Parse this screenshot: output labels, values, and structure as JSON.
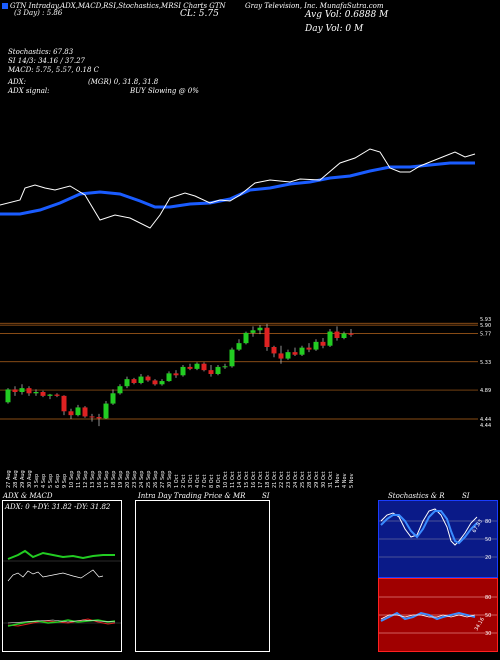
{
  "header": {
    "links": "GTN Intraday,ADX,MACD,RSI,Stochastics,MRSI Charts GTN",
    "title": "Gray Television, Inc. MunafaSutra.com",
    "date_label": "(3 Day) : 5.86",
    "close_label": "CL: 5.75",
    "avg_vol": "Avg Vol: 0.6888  M",
    "day_vol": "Day Vol: 0  M"
  },
  "indicators": {
    "stochastics": "Stochastics: 67.83",
    "si": "SI 14/3: 34.16  /  37.27",
    "macd": "MACD: 5.75, 5.57, 0.18  C",
    "adx": "ADX:",
    "adx_values": "(MGR) 0, 31.8, 31.8",
    "adx_signal": "ADX  signal:",
    "buy_signal": "BUY Slowing @ 0%"
  },
  "colors": {
    "price_line": "#ffffff",
    "ma_line": "#1a5cff",
    "up_candle": "#22cc22",
    "down_candle": "#dd2222",
    "level_line": "#b5651d"
  },
  "candle_chart": {
    "price_labels": [
      "5.93",
      "5.90",
      "5.77",
      "5.33",
      "4.89",
      "4.44",
      "4.44"
    ],
    "dates": [
      "27 Aug",
      "28 Aug",
      "29 Aug",
      "30 Aug",
      "3 Sep",
      "4 Sep",
      "5 Sep",
      "6 Sep",
      "9 Sep",
      "10 Sep",
      "11 Sep",
      "12 Sep",
      "13 Sep",
      "16 Sep",
      "17 Sep",
      "18 Sep",
      "19 Sep",
      "20 Sep",
      "23 Sep",
      "24 Sep",
      "25 Sep",
      "26 Sep",
      "27 Sep",
      "30 Sep",
      "1 Oct",
      "2 Oct",
      "3 Oct",
      "4 Oct",
      "7 Oct",
      "8 Oct",
      "9 Oct",
      "10 Oct",
      "11 Oct",
      "14 Oct",
      "15 Oct",
      "16 Oct",
      "17 Oct",
      "18 Oct",
      "21 Oct",
      "22 Oct",
      "23 Oct",
      "24 Oct",
      "25 Oct",
      "28 Oct",
      "29 Oct",
      "30 Oct",
      "31 Oct",
      "1 Nov",
      "4 Nov",
      "5 Nov"
    ]
  },
  "chart_data": {
    "type": "candlestick",
    "levels": [
      5.93,
      5.9,
      5.77,
      5.33,
      4.89,
      4.44
    ],
    "candles": [
      {
        "o": 4.7,
        "h": 4.92,
        "l": 4.68,
        "c": 4.9
      },
      {
        "o": 4.9,
        "h": 4.95,
        "l": 4.8,
        "c": 4.86
      },
      {
        "o": 4.86,
        "h": 4.98,
        "l": 4.82,
        "c": 4.92
      },
      {
        "o": 4.92,
        "h": 4.95,
        "l": 4.8,
        "c": 4.84
      },
      {
        "o": 4.84,
        "h": 4.9,
        "l": 4.8,
        "c": 4.86
      },
      {
        "o": 4.86,
        "h": 4.88,
        "l": 4.78,
        "c": 4.8
      },
      {
        "o": 4.8,
        "h": 4.83,
        "l": 4.75,
        "c": 4.82
      },
      {
        "o": 4.82,
        "h": 4.84,
        "l": 4.78,
        "c": 4.8
      },
      {
        "o": 4.8,
        "h": 4.81,
        "l": 4.5,
        "c": 4.56
      },
      {
        "o": 4.56,
        "h": 4.6,
        "l": 4.44,
        "c": 4.5
      },
      {
        "o": 4.5,
        "h": 4.66,
        "l": 4.48,
        "c": 4.62
      },
      {
        "o": 4.62,
        "h": 4.64,
        "l": 4.46,
        "c": 4.48
      },
      {
        "o": 4.48,
        "h": 4.52,
        "l": 4.4,
        "c": 4.47
      },
      {
        "o": 4.47,
        "h": 4.52,
        "l": 4.33,
        "c": 4.45
      },
      {
        "o": 4.45,
        "h": 4.72,
        "l": 4.44,
        "c": 4.68
      },
      {
        "o": 4.68,
        "h": 4.9,
        "l": 4.66,
        "c": 4.84
      },
      {
        "o": 4.84,
        "h": 4.98,
        "l": 4.82,
        "c": 4.95
      },
      {
        "o": 4.95,
        "h": 5.1,
        "l": 4.92,
        "c": 5.06
      },
      {
        "o": 5.06,
        "h": 5.08,
        "l": 4.98,
        "c": 5.0
      },
      {
        "o": 5.0,
        "h": 5.14,
        "l": 4.98,
        "c": 5.1
      },
      {
        "o": 5.1,
        "h": 5.12,
        "l": 5.02,
        "c": 5.04
      },
      {
        "o": 5.04,
        "h": 5.06,
        "l": 4.96,
        "c": 4.98
      },
      {
        "o": 4.98,
        "h": 5.06,
        "l": 4.96,
        "c": 5.03
      },
      {
        "o": 5.03,
        "h": 5.18,
        "l": 5.02,
        "c": 5.15
      },
      {
        "o": 5.15,
        "h": 5.2,
        "l": 5.08,
        "c": 5.12
      },
      {
        "o": 5.12,
        "h": 5.28,
        "l": 5.1,
        "c": 5.25
      },
      {
        "o": 5.25,
        "h": 5.3,
        "l": 5.2,
        "c": 5.22
      },
      {
        "o": 5.22,
        "h": 5.32,
        "l": 5.2,
        "c": 5.3
      },
      {
        "o": 5.3,
        "h": 5.32,
        "l": 5.18,
        "c": 5.2
      },
      {
        "o": 5.2,
        "h": 5.28,
        "l": 5.1,
        "c": 5.14
      },
      {
        "o": 5.14,
        "h": 5.28,
        "l": 5.12,
        "c": 5.25
      },
      {
        "o": 5.25,
        "h": 5.3,
        "l": 5.22,
        "c": 5.26
      },
      {
        "o": 5.26,
        "h": 5.55,
        "l": 5.24,
        "c": 5.52
      },
      {
        "o": 5.52,
        "h": 5.68,
        "l": 5.5,
        "c": 5.62
      },
      {
        "o": 5.62,
        "h": 5.8,
        "l": 5.6,
        "c": 5.78
      },
      {
        "o": 5.78,
        "h": 5.88,
        "l": 5.72,
        "c": 5.82
      },
      {
        "o": 5.82,
        "h": 5.9,
        "l": 5.76,
        "c": 5.86
      },
      {
        "o": 5.86,
        "h": 5.92,
        "l": 5.5,
        "c": 5.56
      },
      {
        "o": 5.56,
        "h": 5.58,
        "l": 5.4,
        "c": 5.46
      },
      {
        "o": 5.46,
        "h": 5.58,
        "l": 5.3,
        "c": 5.38
      },
      {
        "o": 5.38,
        "h": 5.52,
        "l": 5.36,
        "c": 5.48
      },
      {
        "o": 5.48,
        "h": 5.55,
        "l": 5.42,
        "c": 5.44
      },
      {
        "o": 5.44,
        "h": 5.58,
        "l": 5.42,
        "c": 5.55
      },
      {
        "o": 5.55,
        "h": 5.62,
        "l": 5.48,
        "c": 5.52
      },
      {
        "o": 5.52,
        "h": 5.68,
        "l": 5.5,
        "c": 5.64
      },
      {
        "o": 5.64,
        "h": 5.7,
        "l": 5.54,
        "c": 5.58
      },
      {
        "o": 5.58,
        "h": 5.84,
        "l": 5.56,
        "c": 5.8
      },
      {
        "o": 5.8,
        "h": 5.88,
        "l": 5.66,
        "c": 5.7
      },
      {
        "o": 5.7,
        "h": 5.8,
        "l": 5.68,
        "c": 5.77
      },
      {
        "o": 5.77,
        "h": 5.84,
        "l": 5.72,
        "c": 5.75
      }
    ]
  },
  "bottom": {
    "adx_panel": {
      "title": "ADX  & MACD",
      "values": "ADX: 0  +DY: 31.82  -DY: 31.82"
    },
    "intraday_panel": {
      "title": "Intra  Day Trading Price  & MR",
      "title2": "SI"
    },
    "stoch_panel": {
      "title": "Stochastics & R",
      "title2": "SI",
      "labels": [
        "80",
        "50",
        "20"
      ],
      "value_label": "67.83",
      "rsi_labels": [
        "80",
        "50",
        "30"
      ],
      "rsi_value": "34.16"
    }
  }
}
